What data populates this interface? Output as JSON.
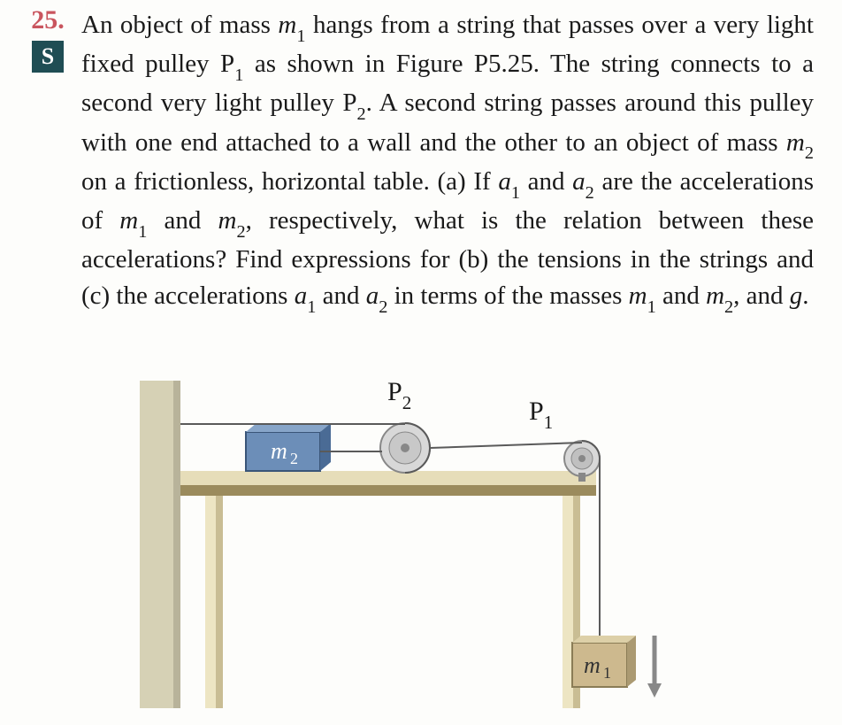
{
  "problem": {
    "number": "25.",
    "badge": "S",
    "html": "An object of mass <i>m</i><sub>1</sub> hangs from a string that passes over a very light fixed pulley P<sub>1</sub> as shown in Figure P5.25. The string connects to a second very light pulley P<sub>2</sub>. A second string passes around this pulley with one end attached to a wall and the other to an object of mass <i>m</i><sub>2</sub> on a frictionless, horizontal table. (a) If <i>a</i><sub>1</sub> and <i>a</i><sub>2</sub> are the accelerations of <i>m</i><sub>1</sub> and <i>m</i><sub>2</sub>, respectively, what is the relation between these accelerations? Find expressions for (b) the tensions in the strings and (c) the accelerations <i>a</i><sub>1</sub> and <i>a</i><sub>2</sub> in terms of the masses <i>m</i><sub>1</sub> and <i>m</i><sub>2</sub>, and <i>g</i>."
  },
  "figure": {
    "labels": {
      "P2": "P<sub>2</sub>",
      "P1": "P<sub>1</sub>",
      "m2": "<i>m</i><sub>2</sub>",
      "m1": "<i>m</i><sub>1</sub>"
    },
    "colors": {
      "wall": "#d6d1b5",
      "wall_shadow": "#b8b39a",
      "table_top": "#e6ddb9",
      "table_top_dark": "#cfc5a0",
      "table_edge": "#9b8b5d",
      "table_leg_light": "#ede5c3",
      "table_leg_dark": "#c9bd94",
      "block_blue": "#6c8eb8",
      "block_blue_dark": "#4a6b95",
      "block_tan": "#cdb98e",
      "block_tan_dark": "#ab9a72",
      "pulley_ring": "#b8b8b8",
      "pulley_inner": "#d8d8d8",
      "string": "#5a5a5a",
      "arrow": "#888"
    },
    "layout": {
      "note": "Figure shows a vertical wall on the left, a table with block m2 on top, string going to movable pulley P2, then to fixed pulley P1 at table's right edge, down to hanging block m1. Separate string around P2 attached to wall and m2."
    }
  }
}
